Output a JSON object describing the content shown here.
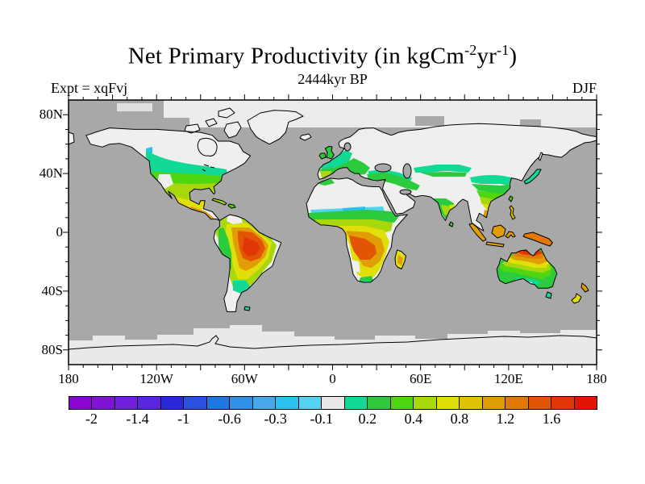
{
  "header": {
    "title_parts": [
      "Net Primary Productivity (in kgCm",
      "-2",
      "yr",
      "-1",
      ")"
    ],
    "subtitle": "2444kyr BP",
    "experiment": "Expt = xqFvj",
    "season": "DJF"
  },
  "axes": {
    "lat_labels": [
      {
        "text": "80N",
        "lat": 80
      },
      {
        "text": "40N",
        "lat": 40
      },
      {
        "text": "0",
        "lat": 0
      },
      {
        "text": "40S",
        "lat": -40
      },
      {
        "text": "80S",
        "lat": -80
      }
    ],
    "lon_labels": [
      {
        "text": "180",
        "lon": -180
      },
      {
        "text": "120W",
        "lon": -120
      },
      {
        "text": "60W",
        "lon": -60
      },
      {
        "text": "0",
        "lon": 0
      },
      {
        "text": "60E",
        "lon": 60
      },
      {
        "text": "120E",
        "lon": 120
      },
      {
        "text": "180",
        "lon": 180
      }
    ],
    "minor_tick_interval_deg": 10
  },
  "colorbar": {
    "n_cells": 23,
    "cell_colors": [
      "#8806CE",
      "#7D13D6",
      "#7120DB",
      "#5A25DE",
      "#2A28D9",
      "#2C50DF",
      "#1F77E6",
      "#2F92E8",
      "#45A9EA",
      "#2AC2EC",
      "#52D4F0",
      "#E8E8E8",
      "#12D993",
      "#2BCB3D",
      "#4ED610",
      "#A8D70B",
      "#DFDF09",
      "#DFC307",
      "#E19D05",
      "#E27905",
      "#E25505",
      "#E23508",
      "#E01505"
    ],
    "labels": [
      {
        "text": "-2",
        "boundary_index": 1
      },
      {
        "text": "-1.4",
        "boundary_index": 3
      },
      {
        "text": "-1",
        "boundary_index": 5
      },
      {
        "text": "-0.6",
        "boundary_index": 7
      },
      {
        "text": "-0.3",
        "boundary_index": 9
      },
      {
        "text": "-0.1",
        "boundary_index": 11
      },
      {
        "text": "0.2",
        "boundary_index": 13
      },
      {
        "text": "0.4",
        "boundary_index": 15
      },
      {
        "text": "0.8",
        "boundary_index": 17
      },
      {
        "text": "1.2",
        "boundary_index": 19
      },
      {
        "text": "1.6",
        "boundary_index": 21
      }
    ]
  },
  "chart_data": {
    "type": "heatmap",
    "subtype": "filled-contour-world-map",
    "title": "Net Primary Productivity (in kgCm-2yr-1)",
    "units": "kgC m-2 yr-1",
    "time_label": "2444kyr BP",
    "season": "DJF",
    "experiment": "xqFvj",
    "projection": "equirectangular",
    "lon_range": [
      -180,
      180
    ],
    "lat_range": [
      -90,
      90
    ],
    "colorbar_labeled_levels": [
      -2,
      -1.4,
      -1,
      -0.6,
      -0.3,
      -0.1,
      0.2,
      0.4,
      0.8,
      1.2,
      1.6
    ],
    "levels_boundaries_estimated": [
      -2.3,
      -2,
      -1.7,
      -1.4,
      -1.2,
      -1,
      -0.8,
      -0.6,
      -0.45,
      -0.3,
      -0.2,
      -0.1,
      0.05,
      0.2,
      0.3,
      0.4,
      0.6,
      0.8,
      1.0,
      1.2,
      1.4,
      1.6,
      1.8,
      2.0
    ],
    "palette": [
      "#8806CE",
      "#7D13D6",
      "#7120DB",
      "#5A25DE",
      "#2A28D9",
      "#2C50DF",
      "#1F77E6",
      "#2F92E8",
      "#45A9EA",
      "#2AC2EC",
      "#52D4F0",
      "#E8E8E8",
      "#12D993",
      "#2BCB3D",
      "#4ED610",
      "#A8D70B",
      "#DFDF09",
      "#DFC307",
      "#E19D05",
      "#E27905",
      "#E25505",
      "#E23508",
      "#E01505"
    ],
    "ocean_mask_color": "#A8A8A8",
    "no_data_land_color": "#EFEFEF",
    "ice_color": "#E9E9E9",
    "legend_position": "bottom",
    "grid": false,
    "regions_estimated": [
      {
        "region": "Amazon basin",
        "npp": "1.2 to 1.8"
      },
      {
        "region": "Congo / Angola",
        "npp": "1.2 to 1.8"
      },
      {
        "region": "Northern Australia",
        "npp": "1.6 to 2.0"
      },
      {
        "region": "Southern / central Australia",
        "npp": "0 to 0.6"
      },
      {
        "region": "Southern United States band",
        "npp": "0.2 to 0.8"
      },
      {
        "region": "Mexico / Central America / Caribbean",
        "npp": "0.4 to 1.0"
      },
      {
        "region": "Western and southern Europe",
        "npp": "0.2 to 0.6"
      },
      {
        "region": "Sahel belt",
        "npp": "-0.3 to 0.4"
      },
      {
        "region": "Southern Africa",
        "npp": "0.6 to 1.2"
      },
      {
        "region": "Madagascar",
        "npp": "0.8 to 1.2"
      },
      {
        "region": "South and East Asia",
        "npp": "0.2 to 1.0"
      },
      {
        "region": "Indonesia / New Guinea",
        "npp": "0.8 to 1.4"
      },
      {
        "region": "New Zealand",
        "npp": "0.8 to 1.4"
      },
      {
        "region": "High-latitude northern lands",
        "npp": "no data (winter)"
      },
      {
        "region": "Sahara / Arabia / interior Asia deserts",
        "npp": "no data"
      },
      {
        "region": "Antarctica",
        "npp": "ice"
      },
      {
        "region": "Ocean",
        "npp": "masked"
      }
    ]
  }
}
